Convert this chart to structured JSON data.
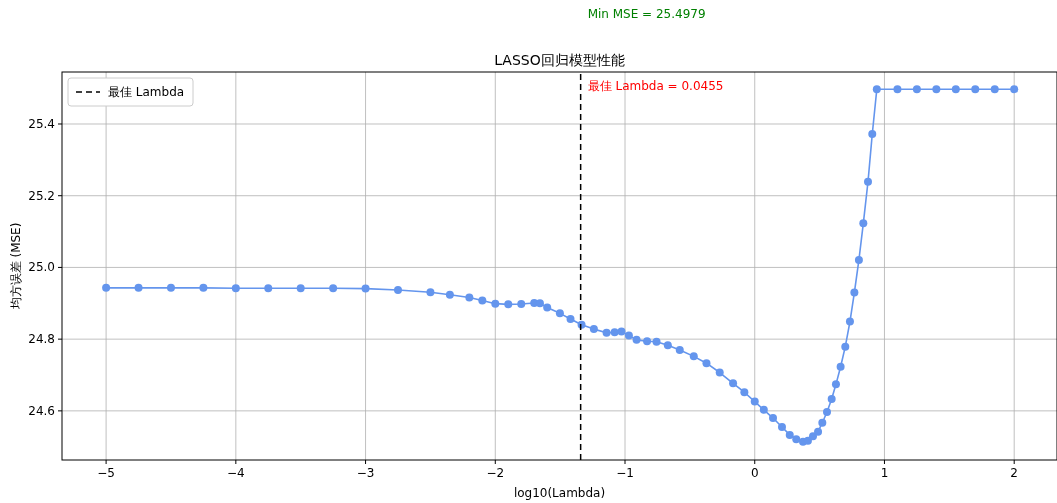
{
  "chart_data": {
    "type": "line",
    "title": "LASSO回归模型性能",
    "xlabel": "log10(Lambda)",
    "ylabel": "均方误差 (MSE)",
    "xlim": [
      -5.34,
      2.33
    ],
    "ylim": [
      24.463,
      25.545
    ],
    "xticks": [
      {
        "value": -5,
        "label": "−5"
      },
      {
        "value": -4,
        "label": "−4"
      },
      {
        "value": -3,
        "label": "−3"
      },
      {
        "value": -2,
        "label": "−2"
      },
      {
        "value": -1,
        "label": "−1"
      },
      0,
      1,
      2
    ],
    "yticks": [
      24.6,
      24.8,
      {
        "value": 25,
        "label": "25.0"
      },
      25.2,
      25.4
    ],
    "grid": true,
    "legend": "top left",
    "marker": "circle",
    "line_style": "solid",
    "series": [
      {
        "color": "#6495ed",
        "x": [
          -5,
          -4.75,
          -4.5,
          -4.25,
          -4,
          -3.75,
          -3.5,
          -3.25,
          -3,
          -2.75,
          -2.5,
          -2.35,
          -2.2,
          -2.1,
          -2,
          -1.9,
          -1.8,
          -1.7,
          -1.656,
          -1.6,
          -1.502,
          -1.42,
          -1.335,
          -1.24,
          -1.142,
          -1.08,
          -1.027,
          -0.97,
          -0.911,
          -0.83,
          -0.757,
          -0.67,
          -0.578,
          -0.47,
          -0.372,
          -0.27,
          -0.167,
          -0.08,
          0,
          0.07,
          0.141,
          0.21,
          0.27,
          0.32,
          0.372,
          0.41,
          0.449,
          0.488,
          0.521,
          0.557,
          0.593,
          0.626,
          0.662,
          0.698,
          0.734,
          0.768,
          0.803,
          0.837,
          0.873,
          0.906,
          0.941,
          1.1,
          1.25,
          1.4,
          1.55,
          1.7,
          1.85,
          2
        ],
        "values": [
          24.943,
          24.943,
          24.943,
          24.943,
          24.942,
          24.942,
          24.942,
          24.942,
          24.941,
          24.937,
          24.931,
          24.924,
          24.916,
          24.908,
          24.899,
          24.897,
          24.898,
          24.901,
          24.9,
          24.888,
          24.872,
          24.856,
          24.84,
          24.828,
          24.818,
          24.819,
          24.821,
          24.81,
          24.798,
          24.794,
          24.793,
          24.783,
          24.77,
          24.752,
          24.733,
          24.707,
          24.677,
          24.652,
          24.626,
          24.603,
          24.58,
          24.555,
          24.533,
          24.521,
          24.514,
          24.517,
          24.529,
          24.542,
          24.567,
          24.597,
          24.633,
          24.674,
          24.723,
          24.779,
          24.849,
          24.93,
          25.021,
          25.123,
          25.239,
          25.372,
          25.497,
          25.497,
          25.497,
          25.497,
          25.497,
          25.497,
          25.497,
          25.497
        ]
      }
    ],
    "ref_lines": [
      {
        "axis": "x",
        "value": -1.342,
        "label": "最佳 Lambda",
        "color": "#000000",
        "line_style": "dashed"
      }
    ],
    "annotations": [
      "最佳 Lambda = 0.0455",
      "Min MSE = 25.4979"
    ]
  }
}
